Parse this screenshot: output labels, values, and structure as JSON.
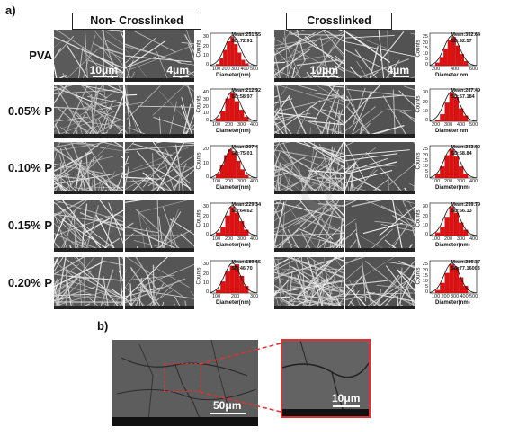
{
  "panel_a_label": "a)",
  "panel_b_label": "b)",
  "headers": {
    "left": "Non- Crosslinked",
    "right": "Crosslinked"
  },
  "scale_bars": {
    "low_mag": "10μm",
    "high_mag": "4μm",
    "b_overview": "50μm",
    "b_zoom": "10μm"
  },
  "axis_text": {
    "counts": "Counts"
  },
  "rows": [
    {
      "label": "PVA",
      "nc": {
        "mean": "Mean:251.55",
        "sd": "SD:72.91",
        "xlabel": "Diameter(nm)",
        "ticks_x": [
          "100",
          "200",
          "300",
          "400",
          "500"
        ],
        "ticks_y": [
          "0",
          "10",
          "20",
          "30"
        ]
      },
      "c": {
        "mean": "Mean:352.64",
        "sd": "SD:92.57",
        "xlabel": "Diameter nm",
        "ticks_x": [
          "200",
          "400",
          "600"
        ],
        "ticks_y": [
          "0",
          "5",
          "10",
          "15",
          "20",
          "25"
        ]
      }
    },
    {
      "label": "0.05% P",
      "nc": {
        "mean": "Mean:212.92",
        "sd": "SD:58.97",
        "xlabel": "Diameter(nm)",
        "ticks_x": [
          "100",
          "200",
          "300",
          "400"
        ],
        "ticks_y": [
          "0",
          "10",
          "20",
          "30",
          "40"
        ]
      },
      "c": {
        "mean": "Mean:287.49",
        "sd": "SD:67.184",
        "xlabel": "Diameter nm",
        "ticks_x": [
          "200",
          "300",
          "400",
          "500"
        ],
        "ticks_y": [
          "0",
          "10",
          "20",
          "30"
        ]
      }
    },
    {
      "label": "0.10% P",
      "nc": {
        "mean": "Mean:207.4",
        "sd": "SD:75.01",
        "xlabel": "Diameter(nm)",
        "ticks_x": [
          "100",
          "200",
          "300",
          "400"
        ],
        "ticks_y": [
          "0",
          "10",
          "20"
        ]
      },
      "c": {
        "mean": "Mean:232.90",
        "sd": "SD:58.84",
        "xlabel": "Diameter(nm)",
        "ticks_x": [
          "100",
          "200",
          "300",
          "400"
        ],
        "ticks_y": [
          "0",
          "5",
          "10",
          "15",
          "20",
          "25"
        ]
      }
    },
    {
      "label": "0.15% P",
      "nc": {
        "mean": "Mean:229.34",
        "sd": "SD:64.62",
        "xlabel": "Diameter(nm)",
        "ticks_x": [
          "100",
          "200",
          "300",
          "400"
        ],
        "ticks_y": [
          "0",
          "10",
          "20",
          "30"
        ]
      },
      "c": {
        "mean": "Mean:259.79",
        "sd": "SD:66.13",
        "xlabel": "Diameter(nm)",
        "ticks_x": [
          "100",
          "200",
          "300",
          "400"
        ],
        "ticks_y": [
          "0",
          "10",
          "20",
          "30"
        ]
      }
    },
    {
      "label": "0.20% P",
      "nc": {
        "mean": "Mean:189.65",
        "sd": "SD:46.70",
        "xlabel": "Diameter(nm)",
        "ticks_x": [
          "100",
          "200",
          "300"
        ],
        "ticks_y": [
          "0",
          "10",
          "20",
          "30"
        ]
      },
      "c": {
        "mean": "Mean:286.37",
        "sd": "SD:77.16003",
        "xlabel": "Diameter(nm)",
        "ticks_x": [
          "100",
          "200",
          "300",
          "400",
          "500"
        ],
        "ticks_y": [
          "0",
          "5",
          "10",
          "15",
          "20",
          "25"
        ]
      }
    }
  ],
  "colors": {
    "bar": "#e01010",
    "fit": "#111111",
    "zoom_box": "#e03030",
    "sem_base": "#6e6e6e"
  }
}
